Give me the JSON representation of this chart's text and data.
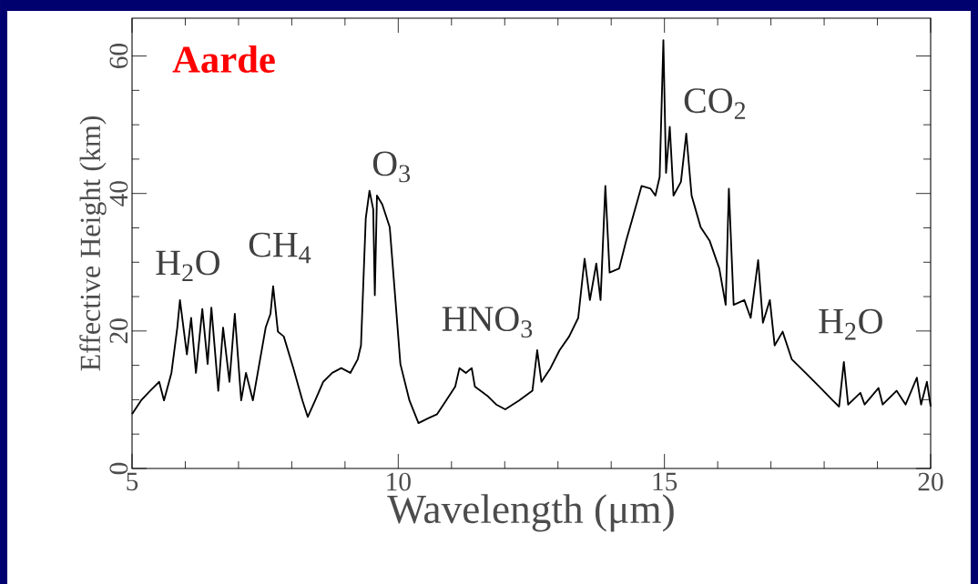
{
  "chart_data": {
    "type": "line",
    "title": "Aarde",
    "xlabel": "Wavelength (μm)",
    "ylabel": "Effective Height (km)",
    "xlim": [
      5,
      20
    ],
    "ylim": [
      0,
      65.5
    ],
    "xticks": [
      5,
      10,
      15,
      20
    ],
    "yticks": [
      0,
      20,
      40,
      60
    ],
    "series": [
      {
        "color": "#000000",
        "x": [
          5.0,
          5.17,
          5.34,
          5.51,
          5.6,
          5.74,
          5.85,
          5.9,
          6.03,
          6.11,
          6.2,
          6.32,
          6.42,
          6.49,
          6.62,
          6.71,
          6.83,
          6.93,
          7.05,
          7.14,
          7.27,
          7.39,
          7.51,
          7.6,
          7.65,
          7.74,
          7.85,
          8.03,
          8.2,
          8.3,
          8.44,
          8.59,
          8.76,
          8.93,
          9.1,
          9.24,
          9.3,
          9.39,
          9.46,
          9.53,
          9.56,
          9.6,
          9.7,
          9.84,
          9.96,
          10.04,
          10.21,
          10.38,
          10.56,
          10.73,
          10.9,
          11.07,
          11.15,
          11.27,
          11.38,
          11.44,
          11.67,
          11.84,
          12.01,
          12.27,
          12.52,
          12.61,
          12.69,
          12.86,
          13.03,
          13.21,
          13.38,
          13.5,
          13.6,
          13.72,
          13.8,
          13.89,
          13.97,
          14.15,
          14.28,
          14.4,
          14.57,
          14.74,
          14.83,
          14.91,
          14.98,
          15.03,
          15.1,
          15.17,
          15.31,
          15.41,
          15.51,
          15.68,
          15.85,
          16.03,
          16.15,
          16.21,
          16.3,
          16.5,
          16.62,
          16.76,
          16.85,
          16.98,
          17.07,
          17.22,
          17.39,
          17.65,
          17.91,
          18.16,
          18.28,
          18.37,
          18.45,
          18.68,
          18.76,
          19.02,
          19.1,
          19.36,
          19.53,
          19.74,
          19.82,
          19.93,
          20.0
        ],
        "values": [
          7.9,
          9.9,
          11.3,
          12.6,
          9.9,
          13.9,
          20.5,
          24.5,
          16.6,
          21.9,
          13.9,
          23.2,
          15.2,
          23.4,
          11.3,
          20.5,
          12.6,
          22.5,
          9.9,
          13.9,
          9.9,
          15.2,
          20.5,
          22.5,
          26.5,
          19.9,
          19.2,
          14.6,
          9.9,
          7.5,
          9.9,
          12.6,
          13.9,
          14.6,
          13.9,
          15.9,
          17.9,
          36.4,
          40.4,
          37.7,
          25.2,
          39.7,
          38.4,
          35.1,
          23.2,
          15.2,
          9.9,
          6.6,
          7.3,
          7.9,
          9.9,
          11.9,
          14.6,
          13.9,
          14.6,
          11.9,
          10.6,
          9.3,
          8.6,
          9.9,
          11.3,
          17.2,
          12.6,
          14.6,
          17.2,
          19.2,
          21.9,
          30.5,
          24.5,
          29.8,
          24.5,
          41.1,
          28.5,
          29.1,
          33.1,
          36.4,
          41.1,
          40.7,
          39.7,
          42.4,
          62.3,
          43.0,
          49.7,
          39.7,
          41.7,
          48.7,
          39.7,
          35.1,
          33.1,
          29.1,
          23.8,
          40.7,
          23.8,
          24.5,
          21.9,
          30.3,
          21.2,
          24.5,
          17.9,
          19.9,
          15.9,
          13.9,
          11.9,
          9.9,
          9.0,
          15.5,
          9.3,
          11.0,
          9.3,
          11.7,
          9.3,
          11.3,
          9.3,
          13.2,
          9.3,
          12.6,
          9.0
        ]
      }
    ],
    "annotations": [
      "H$_{2}$O",
      "CH$_{4}$",
      "O$_{3}$",
      "HNO$_{3}$",
      "CO$_{2}$",
      "H$_{2}$O"
    ]
  }
}
